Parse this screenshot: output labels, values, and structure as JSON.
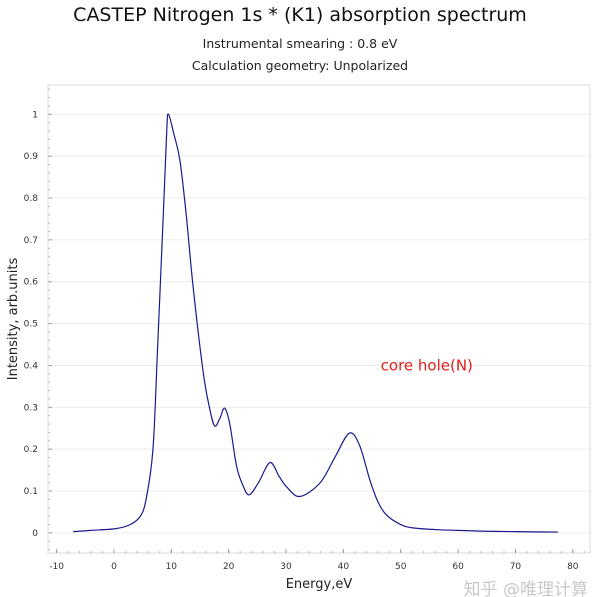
{
  "chart_data": {
    "type": "line",
    "title": "CASTEP Nitrogen 1s * (K1) absorption spectrum",
    "subtitles": [
      "Instrumental smearing : 0.8 eV",
      "Calculation geometry: Unpolarized"
    ],
    "xlabel": "Energy,eV",
    "ylabel": "Intensity, arb.units",
    "xlim": [
      -11.5,
      83
    ],
    "ylim": [
      -0.048,
      1.07
    ],
    "xticks": [
      -10,
      0,
      10,
      20,
      30,
      40,
      50,
      60,
      70,
      80
    ],
    "yticks": [
      0,
      0.1,
      0.2,
      0.3,
      0.4,
      0.5,
      0.6,
      0.7,
      0.8,
      0.9,
      1
    ],
    "grid": "horizontal",
    "line_color": "#1a1a8c",
    "annotation": {
      "text": "core hole(N)",
      "x": 46.5,
      "y": 0.4,
      "color": "#e0201a"
    },
    "series": [
      {
        "x": [
          -7.1,
          -4,
          0.2,
          2.5,
          4.5,
          5.6,
          6.8,
          7.6,
          8.6,
          9.2,
          9.5,
          10.5,
          11.5,
          12.6,
          13.8,
          15.6,
          16.8,
          17.6,
          18.5,
          19.3,
          20.2,
          21.4,
          22.6,
          23.6,
          25.2,
          27.2,
          28.8,
          30.1,
          32.4,
          35.9,
          38.5,
          41.0,
          42.8,
          44.6,
          46.0,
          47.5,
          50.0,
          52.1,
          56,
          60,
          65,
          70,
          77.4
        ],
        "y": [
          0.003,
          0.006,
          0.01,
          0.018,
          0.038,
          0.08,
          0.2,
          0.44,
          0.76,
          0.96,
          1.0,
          0.95,
          0.89,
          0.76,
          0.588,
          0.38,
          0.29,
          0.255,
          0.275,
          0.298,
          0.26,
          0.158,
          0.11,
          0.091,
          0.12,
          0.168,
          0.135,
          0.11,
          0.087,
          0.119,
          0.18,
          0.238,
          0.21,
          0.127,
          0.075,
          0.043,
          0.02,
          0.012,
          0.008,
          0.006,
          0.004,
          0.003,
          0.002
        ]
      }
    ]
  },
  "watermark": "知乎 @唯理计算"
}
